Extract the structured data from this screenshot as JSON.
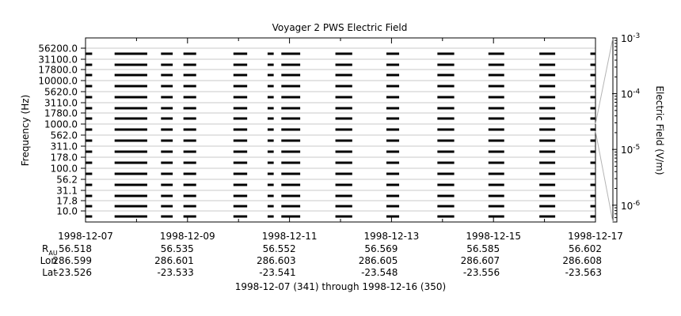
{
  "chart_data": {
    "type": "heatmap",
    "title": "Voyager 2 PWS Electric Field",
    "ylabel": "Frequency (Hz)",
    "y_channels": [
      "10.0",
      "17.8",
      "31.1",
      "56.2",
      "100.0",
      "178.0",
      "311.0",
      "562.0",
      "1000.0",
      "1780.0",
      "3110.0",
      "5620.0",
      "10000.0",
      "17800.0",
      "31100.0",
      "56200.0"
    ],
    "x_tick_labels": [
      "1998-12-07",
      "1998-12-09",
      "1998-12-11",
      "1998-12-13",
      "1998-12-15",
      "1998-12-17"
    ],
    "x_range_days": [
      0,
      10
    ],
    "data_intervals_days": [
      [
        0.0,
        0.13
      ],
      [
        0.57,
        1.21
      ],
      [
        1.48,
        1.71
      ],
      [
        1.92,
        2.17
      ],
      [
        2.9,
        3.17
      ],
      [
        3.57,
        3.69
      ],
      [
        3.84,
        4.21
      ],
      [
        4.9,
        5.23
      ],
      [
        5.9,
        6.15
      ],
      [
        6.9,
        7.23
      ],
      [
        7.9,
        8.21
      ],
      [
        8.9,
        9.21
      ],
      [
        9.9,
        10.0
      ]
    ],
    "colorbar": {
      "label": "Electric Field (V/m)",
      "scale": "log",
      "range": [
        5e-07,
        0.001
      ],
      "ticks": [
        {
          "value": 1e-06,
          "base": "10",
          "exp": "-6"
        },
        {
          "value": 1e-05,
          "base": "10",
          "exp": "-5"
        },
        {
          "value": 0.0001,
          "base": "10",
          "exp": "-4"
        },
        {
          "value": 0.001,
          "base": "10",
          "exp": "-3"
        }
      ]
    },
    "ephemeris": {
      "labels": {
        "r_main": "R",
        "r_sub": "AU",
        "lon": "Lon",
        "lat": "Lat"
      },
      "columns": [
        {
          "r": "56.518",
          "lon": "286.599",
          "lat": "-23.526"
        },
        {
          "r": "56.535",
          "lon": "286.601",
          "lat": "-23.533"
        },
        {
          "r": "56.552",
          "lon": "286.603",
          "lat": "-23.541"
        },
        {
          "r": "56.569",
          "lon": "286.605",
          "lat": "-23.548"
        },
        {
          "r": "56.585",
          "lon": "286.607",
          "lat": "-23.556"
        },
        {
          "r": "56.602",
          "lon": "286.608",
          "lat": "-23.563"
        }
      ]
    },
    "footer": "1998-12-07 (341) through 1998-12-16 (350)"
  }
}
